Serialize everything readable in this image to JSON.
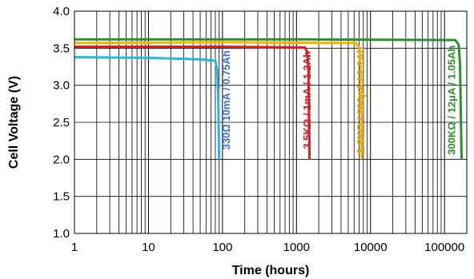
{
  "chart_data": {
    "type": "line",
    "title": "",
    "xlabel": "Time (hours)",
    "ylabel": "Cell Voltage (V)",
    "xscale": "log",
    "xlim": [
      1,
      200000
    ],
    "ylim": [
      1.0,
      4.0
    ],
    "x_ticks": [
      {
        "value": 1,
        "label": "1"
      },
      {
        "value": 10,
        "label": "10"
      },
      {
        "value": 100,
        "label": "100"
      },
      {
        "value": 1000,
        "label": "1000"
      },
      {
        "value": 10000,
        "label": "10000"
      },
      {
        "value": 100000,
        "label": "100000"
      }
    ],
    "y_ticks": [
      {
        "value": 1.0,
        "label": "1.0"
      },
      {
        "value": 1.5,
        "label": "1.5"
      },
      {
        "value": 2.0,
        "label": "2.0"
      },
      {
        "value": 2.5,
        "label": "2.5"
      },
      {
        "value": 3.0,
        "label": "3.0"
      },
      {
        "value": 3.5,
        "label": "3.5"
      },
      {
        "value": 4.0,
        "label": "4.0"
      }
    ],
    "grid": true,
    "legend": "none",
    "series": [
      {
        "label": "330Ω  10mA / 0.75Ah",
        "color": "#27b4e6",
        "label_color": "#3a6fe0",
        "label_at": {
          "x": 125,
          "y": 2.8
        },
        "points": [
          [
            1,
            3.38
          ],
          [
            10,
            3.37
          ],
          [
            50,
            3.35
          ],
          [
            80,
            3.33
          ],
          [
            85,
            3.2
          ],
          [
            88,
            2.8
          ],
          [
            90,
            2.0
          ]
        ]
      },
      {
        "label": "3.5KΩ / 1mA / 1.2Ah",
        "color": "#e01b22",
        "label_color": "#e01b22",
        "label_at": {
          "x": 1550,
          "y": 2.8
        },
        "points": [
          [
            1,
            3.52
          ],
          [
            100,
            3.52
          ],
          [
            1300,
            3.51
          ],
          [
            1400,
            3.45
          ],
          [
            1450,
            3.2
          ],
          [
            1500,
            2.0
          ]
        ]
      },
      {
        "label": "1.8KΩ / 200μA / 1.1Ah",
        "color": "#f5b300",
        "label_color": "#e0a010",
        "label_at": {
          "x": 8200,
          "y": 2.8
        },
        "points": [
          [
            1,
            3.57
          ],
          [
            100,
            3.58
          ],
          [
            6400,
            3.57
          ],
          [
            7000,
            3.5
          ],
          [
            7400,
            3.2
          ],
          [
            7600,
            2.0
          ]
        ]
      },
      {
        "label": "300KΩ / 12μA / 1.05Ah",
        "color": "#2d8f2d",
        "label_color": "#2d8f2d",
        "label_at": {
          "x": 140000,
          "y": 2.8
        },
        "points": [
          [
            1,
            3.62
          ],
          [
            1000,
            3.62
          ],
          [
            140000,
            3.61
          ],
          [
            155000,
            3.55
          ],
          [
            162000,
            3.3
          ],
          [
            170000,
            2.0
          ]
        ]
      }
    ]
  }
}
